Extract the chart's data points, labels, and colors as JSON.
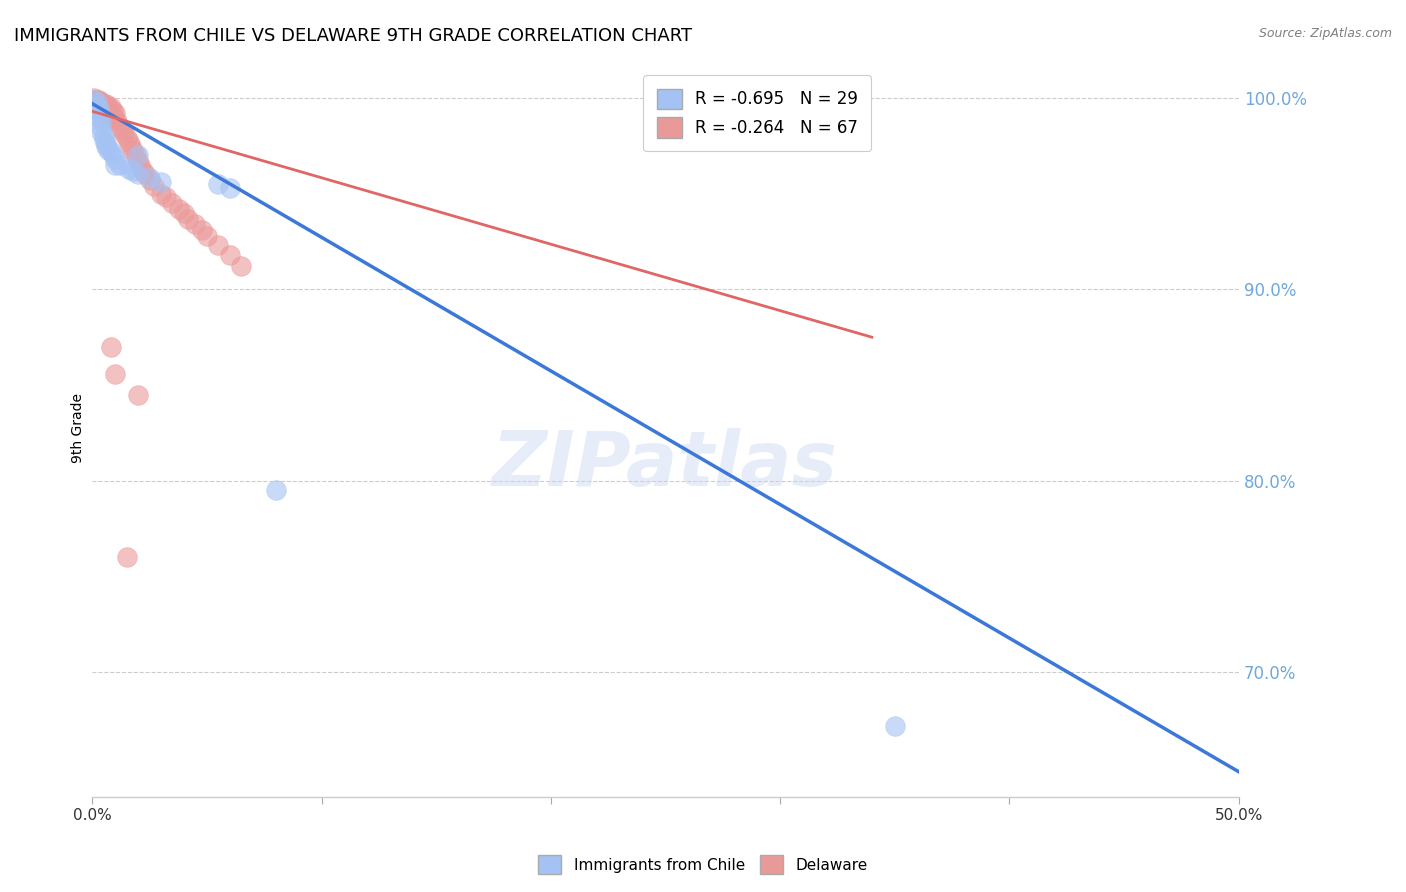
{
  "title": "IMMIGRANTS FROM CHILE VS DELAWARE 9TH GRADE CORRELATION CHART",
  "source": "Source: ZipAtlas.com",
  "ylabel": "9th Grade",
  "y_tick_labels": [
    "70.0%",
    "80.0%",
    "90.0%",
    "100.0%"
  ],
  "y_tick_values": [
    0.7,
    0.8,
    0.9,
    1.0
  ],
  "xlim": [
    0.0,
    0.5
  ],
  "ylim": [
    0.635,
    1.02
  ],
  "legend_r_blue": "R = -0.695",
  "legend_n_blue": "N = 29",
  "legend_r_pink": "R = -0.264",
  "legend_n_pink": "N = 67",
  "legend_label_blue": "Immigrants from Chile",
  "legend_label_pink": "Delaware",
  "blue_color": "#a4c2f4",
  "pink_color": "#ea9999",
  "blue_line_color": "#3c78d8",
  "pink_line_color": "#e06666",
  "watermark": "ZIPatlas",
  "blue_scatter_x": [
    0.001,
    0.002,
    0.002,
    0.003,
    0.003,
    0.003,
    0.004,
    0.004,
    0.004,
    0.005,
    0.005,
    0.006,
    0.006,
    0.007,
    0.008,
    0.009,
    0.01,
    0.012,
    0.016,
    0.018,
    0.02,
    0.025,
    0.03,
    0.055,
    0.06,
    0.08,
    0.02,
    0.01,
    0.35
  ],
  "blue_scatter_y": [
    0.999,
    0.998,
    0.996,
    0.994,
    0.992,
    0.99,
    0.988,
    0.985,
    0.982,
    0.98,
    0.978,
    0.976,
    0.975,
    0.973,
    0.972,
    0.97,
    0.968,
    0.965,
    0.963,
    0.962,
    0.96,
    0.958,
    0.956,
    0.955,
    0.953,
    0.795,
    0.97,
    0.965,
    0.672
  ],
  "pink_scatter_x": [
    0.001,
    0.001,
    0.001,
    0.001,
    0.002,
    0.002,
    0.002,
    0.002,
    0.002,
    0.002,
    0.003,
    0.003,
    0.003,
    0.003,
    0.003,
    0.004,
    0.004,
    0.004,
    0.004,
    0.005,
    0.005,
    0.005,
    0.005,
    0.006,
    0.006,
    0.006,
    0.006,
    0.007,
    0.007,
    0.008,
    0.008,
    0.008,
    0.009,
    0.009,
    0.01,
    0.01,
    0.011,
    0.012,
    0.013,
    0.014,
    0.015,
    0.016,
    0.017,
    0.018,
    0.019,
    0.02,
    0.021,
    0.022,
    0.023,
    0.025,
    0.027,
    0.03,
    0.032,
    0.035,
    0.038,
    0.04,
    0.042,
    0.045,
    0.048,
    0.05,
    0.055,
    0.06,
    0.065,
    0.01,
    0.008,
    0.02,
    0.015
  ],
  "pink_scatter_y": [
    1.0,
    0.999,
    0.998,
    0.997,
    0.999,
    0.998,
    0.997,
    0.996,
    0.995,
    0.994,
    0.999,
    0.998,
    0.997,
    0.996,
    0.995,
    0.998,
    0.997,
    0.996,
    0.995,
    0.997,
    0.996,
    0.995,
    0.993,
    0.997,
    0.996,
    0.994,
    0.992,
    0.996,
    0.993,
    0.995,
    0.992,
    0.99,
    0.993,
    0.99,
    0.992,
    0.989,
    0.988,
    0.985,
    0.983,
    0.981,
    0.979,
    0.977,
    0.975,
    0.972,
    0.97,
    0.967,
    0.965,
    0.962,
    0.96,
    0.957,
    0.954,
    0.95,
    0.948,
    0.945,
    0.942,
    0.94,
    0.937,
    0.934,
    0.931,
    0.928,
    0.923,
    0.918,
    0.912,
    0.856,
    0.87,
    0.845,
    0.76
  ],
  "blue_trend_x": [
    0.0,
    0.5
  ],
  "blue_trend_y": [
    0.997,
    0.648
  ],
  "pink_trend_x": [
    0.0,
    0.34
  ],
  "pink_trend_y": [
    0.993,
    0.875
  ],
  "grid_color": "#cccccc",
  "right_axis_color": "#6fa8dc",
  "title_fontsize": 13,
  "label_fontsize": 10
}
